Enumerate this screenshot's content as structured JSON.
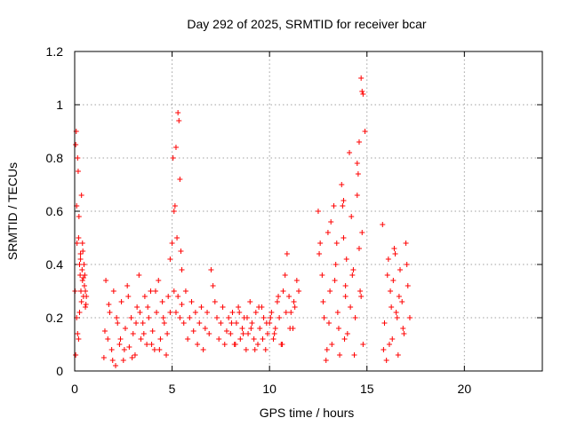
{
  "chart_data": {
    "type": "scatter",
    "title": "Day 292 of 2025, SRMTID for receiver bcar",
    "xlabel": "GPS time / hours",
    "ylabel": "SRMTID / TECUs",
    "xlim": [
      0,
      24
    ],
    "ylim": [
      0,
      1.2
    ],
    "xticks": [
      0,
      5,
      10,
      15,
      20
    ],
    "xtick_labels": [
      "0",
      "5",
      "10",
      "15",
      "20"
    ],
    "yticks": [
      0,
      0.2,
      0.4,
      0.6,
      0.8,
      1.0,
      1.2
    ],
    "ytick_labels": [
      "0",
      "0.2",
      "0.4",
      "0.6",
      "0.8",
      "1",
      "1.2"
    ],
    "grid": true,
    "marker": "+",
    "series": [
      {
        "name": "bcar",
        "color": "#ff0000",
        "x": [
          0.02,
          0.05,
          0.08,
          0.1,
          0.12,
          0.15,
          0.18,
          0.2,
          0.22,
          0.25,
          0.28,
          0.3,
          0.32,
          0.35,
          0.38,
          0.4,
          0.42,
          0.45,
          0.48,
          0.5,
          0.52,
          0.55,
          0.58,
          0.6,
          0.1,
          0.15,
          0.2,
          0.3,
          0.35,
          0.45,
          0.05,
          0.25,
          0.4,
          0.55,
          1.5,
          1.6,
          1.7,
          1.8,
          1.9,
          2.0,
          2.1,
          2.2,
          2.3,
          2.4,
          2.5,
          2.6,
          2.7,
          2.8,
          2.9,
          3.0,
          3.1,
          3.2,
          3.3,
          3.4,
          3.5,
          3.6,
          3.7,
          3.8,
          3.9,
          4.0,
          4.1,
          4.2,
          4.3,
          4.4,
          4.5,
          4.6,
          4.7,
          4.8,
          4.9,
          1.55,
          1.75,
          1.95,
          2.15,
          2.35,
          2.55,
          2.75,
          2.95,
          3.15,
          3.35,
          3.55,
          3.75,
          3.95,
          4.15,
          4.35,
          4.55,
          4.75,
          4.9,
          5.0,
          5.05,
          5.1,
          5.15,
          5.2,
          5.25,
          5.3,
          5.35,
          5.4,
          5.45,
          5.5,
          5.1,
          5.2,
          5.3,
          5.4,
          5.5,
          5.6,
          5.7,
          5.8,
          5.9,
          6.0,
          6.1,
          6.2,
          6.3,
          6.4,
          6.5,
          6.6,
          6.7,
          6.8,
          6.9,
          7.0,
          7.1,
          7.2,
          7.3,
          7.4,
          7.5,
          7.6,
          7.7,
          7.8,
          7.9,
          8.0,
          8.1,
          8.2,
          8.3,
          8.4,
          8.5,
          8.6,
          8.7,
          8.8,
          8.9,
          9.0,
          9.1,
          9.2,
          9.3,
          9.4,
          9.5,
          9.6,
          9.7,
          9.8,
          9.9,
          10.0,
          10.1,
          10.2,
          10.3,
          10.4,
          10.5,
          10.6,
          10.7,
          10.8,
          10.9,
          11.0,
          11.1,
          11.2,
          11.3,
          11.4,
          11.5,
          8.05,
          8.25,
          8.45,
          8.65,
          8.85,
          9.05,
          9.25,
          9.45,
          9.65,
          9.85,
          10.05,
          10.25,
          10.45,
          10.65,
          10.85,
          11.05,
          11.25,
          12.5,
          12.6,
          12.7,
          12.8,
          12.9,
          13.0,
          13.1,
          13.2,
          13.3,
          13.4,
          13.5,
          13.6,
          13.7,
          13.8,
          13.9,
          14.0,
          14.1,
          14.2,
          14.3,
          14.4,
          14.5,
          14.6,
          14.7,
          14.8,
          14.9,
          12.55,
          12.75,
          12.95,
          13.15,
          13.35,
          13.55,
          13.75,
          13.95,
          14.15,
          14.35,
          14.55,
          14.75,
          13.05,
          13.45,
          13.85,
          14.25,
          14.65,
          14.7,
          14.75,
          14.8,
          14.6,
          14.5,
          13.9,
          13.8,
          15.8,
          15.9,
          16.0,
          16.1,
          16.2,
          16.3,
          16.4,
          16.5,
          16.6,
          16.7,
          16.8,
          16.9,
          17.0,
          17.1,
          17.2,
          15.85,
          16.05,
          16.25,
          16.45,
          16.65,
          16.85,
          17.05,
          16.15,
          16.35,
          16.55
        ],
        "y": [
          0.3,
          0.85,
          0.9,
          0.62,
          0.48,
          0.8,
          0.75,
          0.5,
          0.58,
          0.4,
          0.36,
          0.42,
          0.3,
          0.26,
          0.38,
          0.34,
          0.45,
          0.28,
          0.4,
          0.32,
          0.36,
          0.3,
          0.25,
          0.28,
          0.2,
          0.14,
          0.12,
          0.44,
          0.66,
          0.35,
          0.06,
          0.22,
          0.48,
          0.24,
          0.05,
          0.34,
          0.12,
          0.22,
          0.08,
          0.3,
          0.02,
          0.18,
          0.1,
          0.26,
          0.04,
          0.16,
          0.32,
          0.09,
          0.2,
          0.14,
          0.06,
          0.24,
          0.36,
          0.12,
          0.18,
          0.28,
          0.1,
          0.2,
          0.3,
          0.15,
          0.08,
          0.22,
          0.34,
          0.12,
          0.26,
          0.18,
          0.06,
          0.28,
          0.22,
          0.15,
          0.25,
          0.04,
          0.2,
          0.12,
          0.08,
          0.28,
          0.05,
          0.18,
          0.22,
          0.14,
          0.24,
          0.1,
          0.3,
          0.08,
          0.2,
          0.14,
          0.42,
          0.48,
          0.8,
          0.6,
          0.62,
          0.84,
          0.5,
          0.97,
          0.94,
          0.72,
          0.45,
          0.38,
          0.3,
          0.22,
          0.28,
          0.2,
          0.25,
          0.18,
          0.3,
          0.12,
          0.2,
          0.26,
          0.15,
          0.22,
          0.1,
          0.18,
          0.24,
          0.08,
          0.16,
          0.22,
          0.14,
          0.38,
          0.32,
          0.26,
          0.2,
          0.12,
          0.18,
          0.24,
          0.1,
          0.15,
          0.2,
          0.14,
          0.22,
          0.1,
          0.18,
          0.24,
          0.12,
          0.16,
          0.2,
          0.08,
          0.14,
          0.26,
          0.18,
          0.12,
          0.22,
          0.1,
          0.16,
          0.24,
          0.2,
          0.08,
          0.14,
          0.18,
          0.22,
          0.12,
          0.16,
          0.26,
          0.2,
          0.1,
          0.3,
          0.36,
          0.44,
          0.28,
          0.22,
          0.16,
          0.24,
          0.34,
          0.3,
          0.18,
          0.1,
          0.22,
          0.14,
          0.2,
          0.16,
          0.08,
          0.24,
          0.12,
          0.18,
          0.2,
          0.14,
          0.28,
          0.1,
          0.22,
          0.16,
          0.26,
          0.6,
          0.48,
          0.36,
          0.2,
          0.04,
          0.52,
          0.3,
          0.1,
          0.62,
          0.4,
          0.22,
          0.06,
          0.7,
          0.5,
          0.32,
          0.14,
          0.82,
          0.58,
          0.38,
          0.2,
          0.66,
          0.46,
          0.28,
          0.1,
          0.9,
          0.44,
          0.26,
          0.08,
          0.56,
          0.34,
          0.16,
          0.62,
          0.42,
          0.24,
          0.06,
          0.74,
          0.52,
          0.18,
          0.48,
          0.12,
          0.36,
          0.3,
          1.1,
          1.05,
          1.04,
          0.86,
          0.78,
          0.28,
          0.64,
          0.55,
          0.18,
          0.04,
          0.42,
          0.3,
          0.12,
          0.46,
          0.22,
          0.06,
          0.38,
          0.26,
          0.14,
          0.48,
          0.32,
          0.2,
          0.08,
          0.36,
          0.24,
          0.44,
          0.28,
          0.16,
          0.4,
          0.1,
          0.34,
          0.2
        ]
      }
    ]
  }
}
